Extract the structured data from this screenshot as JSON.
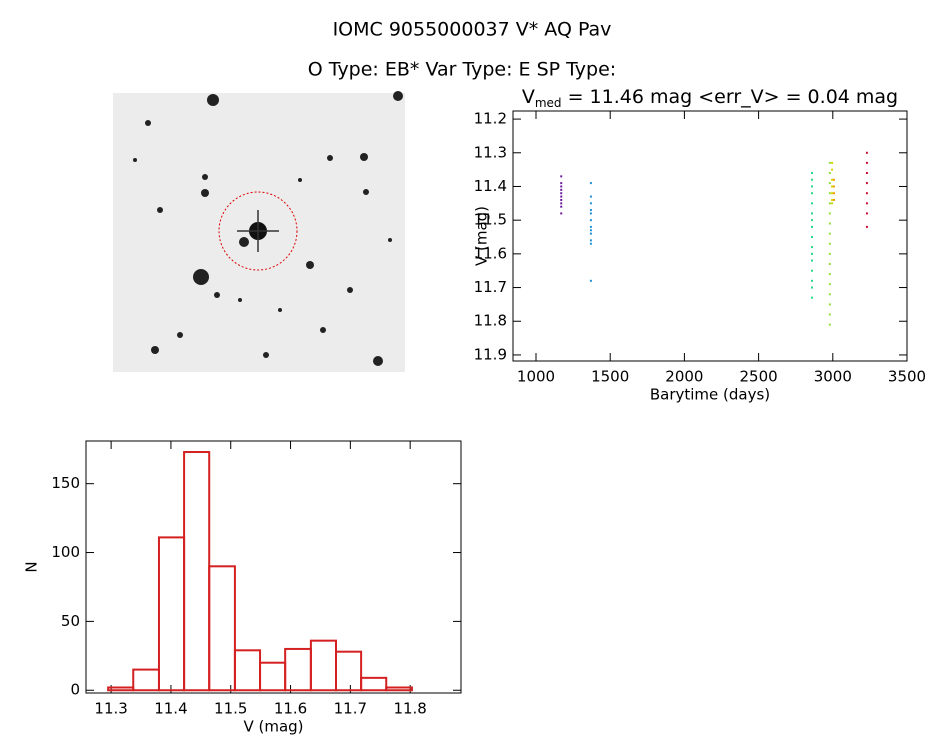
{
  "header": {
    "title": "IOMC 9055000037   V* AQ Pav",
    "subtitle": "O Type: EB*  Var Type: E  SP Type:"
  },
  "chart_data": [
    {
      "type": "scatter",
      "title": {
        "main": "V",
        "sub": "med",
        "rest": " = 11.46 mag <err_V> = 0.04 mag"
      },
      "x_label": "Barytime (days)",
      "y_label": "V (mag)",
      "xlim": [
        845,
        3500
      ],
      "xticks": [
        1000,
        1500,
        2000,
        2500,
        3000,
        3500
      ],
      "ylim": [
        11.918,
        11.176
      ],
      "yticks": [
        11.2,
        11.3,
        11.4,
        11.5,
        11.6,
        11.7,
        11.8,
        11.9
      ],
      "series": [
        {
          "color": "#6a1b9a",
          "x": [
            1170,
            1170,
            1170,
            1170,
            1170,
            1170,
            1170,
            1170,
            1170,
            1170
          ],
          "values": [
            11.37,
            11.39,
            11.4,
            11.41,
            11.42,
            11.43,
            11.44,
            11.45,
            11.46,
            11.48
          ]
        },
        {
          "color": "#1e90d6",
          "x": [
            1370,
            1370,
            1370,
            1370,
            1370,
            1370,
            1370,
            1370,
            1370,
            1370,
            1370,
            1370
          ],
          "values": [
            11.39,
            11.43,
            11.45,
            11.47,
            11.48,
            11.5,
            11.52,
            11.53,
            11.54,
            11.56,
            11.57,
            11.68
          ]
        },
        {
          "color": "#22d88a",
          "x": [
            2860,
            2860,
            2860,
            2860,
            2860,
            2860,
            2860,
            2860,
            2860,
            2860,
            2860,
            2860,
            2860,
            2860,
            2860,
            2860
          ],
          "values": [
            11.36,
            11.38,
            11.4,
            11.42,
            11.45,
            11.48,
            11.5,
            11.52,
            11.55,
            11.58,
            11.6,
            11.62,
            11.65,
            11.68,
            11.7,
            11.73
          ]
        },
        {
          "color": "#8fe03a",
          "x": [
            2980,
            2980,
            2980,
            2980,
            2980,
            2980,
            2980,
            2980,
            2980,
            2980,
            2980,
            2980,
            2980,
            2980,
            2980,
            2980,
            2980
          ],
          "values": [
            11.33,
            11.36,
            11.39,
            11.42,
            11.45,
            11.48,
            11.51,
            11.54,
            11.57,
            11.6,
            11.63,
            11.66,
            11.69,
            11.72,
            11.75,
            11.78,
            11.81
          ]
        },
        {
          "color": "#d8d000",
          "x": [
            2995,
            2995,
            2995,
            2995,
            2995,
            2995,
            2995
          ],
          "values": [
            11.33,
            11.35,
            11.38,
            11.4,
            11.42,
            11.44,
            11.45
          ]
        },
        {
          "color": "#f0a000",
          "x": [
            3008,
            3008,
            3008,
            3008
          ],
          "values": [
            11.38,
            11.4,
            11.42,
            11.44
          ]
        },
        {
          "color": "#c8102e",
          "x": [
            3230,
            3230,
            3230,
            3230,
            3230,
            3230,
            3230,
            3230
          ],
          "values": [
            11.3,
            11.33,
            11.36,
            11.39,
            11.42,
            11.45,
            11.48,
            11.52
          ]
        }
      ]
    },
    {
      "type": "histogram",
      "x_label": "V (mag)",
      "y_label": "N",
      "color": "#d42020",
      "bins": [
        11.295,
        11.337,
        11.38,
        11.422,
        11.464,
        11.507,
        11.549,
        11.591,
        11.634,
        11.676,
        11.718,
        11.76,
        11.803
      ],
      "values": [
        2,
        15,
        111,
        173,
        90,
        29,
        20,
        30,
        36,
        28,
        9,
        2
      ],
      "xlim": [
        11.258,
        11.885
      ],
      "xticks": [
        11.3,
        11.4,
        11.5,
        11.6,
        11.7,
        11.8
      ],
      "ylim": [
        -2,
        181
      ],
      "yticks": [
        0,
        50,
        100,
        150
      ]
    }
  ]
}
